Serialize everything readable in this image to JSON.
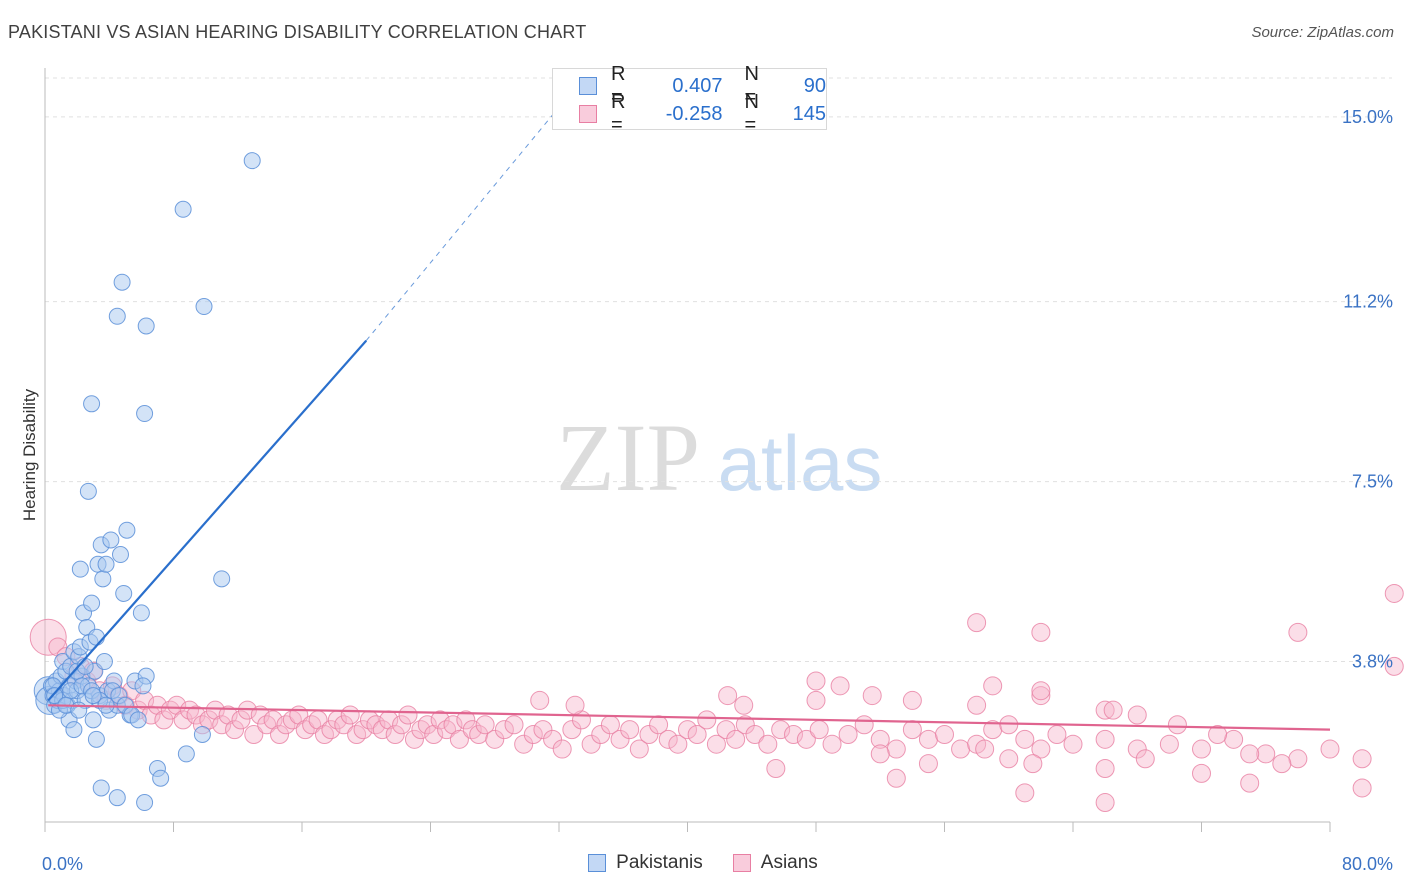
{
  "title": "PAKISTANI VS ASIAN HEARING DISABILITY CORRELATION CHART",
  "source": "Source: ZipAtlas.com",
  "watermark": {
    "zip": "ZIP",
    "atlas": "atlas"
  },
  "legend": {
    "series1": {
      "r_label": "R =",
      "r_value": "0.407",
      "n_label": "N =",
      "n_value": "90"
    },
    "series2": {
      "r_label": "R =",
      "r_value": "-0.258",
      "n_label": "N =",
      "n_value": "145"
    }
  },
  "colors": {
    "pakistani_fill": "#a8c8f0",
    "pakistani_stroke": "#5a8fd8",
    "pakistani_line": "#2a6fcc",
    "asian_fill": "#f6b6cc",
    "asian_stroke": "#e87fa3",
    "asian_line": "#e0648f",
    "axis_text": "#3a72c4",
    "grid": "#e0e0e0"
  },
  "chart_data": {
    "type": "scatter",
    "title": "PAKISTANI VS ASIAN HEARING DISABILITY CORRELATION CHART",
    "xlabel": "",
    "ylabel": "Hearing Disability",
    "xlim": [
      0,
      80
    ],
    "ylim": [
      0.5,
      15.8
    ],
    "x_tick_labels": [
      "0.0%",
      "80.0%"
    ],
    "y_ticks": [
      3.8,
      7.5,
      11.2,
      15.0
    ],
    "y_tick_labels": [
      "3.8%",
      "7.5%",
      "11.2%",
      "15.0%"
    ],
    "grid": "horizontal dashed",
    "legend_position": "top-center",
    "series": [
      {
        "name": "Pakistanis",
        "trend": {
          "x0": 0.2,
          "y0": 3.0,
          "x1": 20.0,
          "y1": 10.4,
          "dashed_to_x": 32.0,
          "dashed_to_y": 15.2
        },
        "points": [
          [
            0.2,
            3.2
          ],
          [
            0.3,
            3.0
          ],
          [
            0.4,
            3.3
          ],
          [
            0.5,
            3.1
          ],
          [
            0.6,
            2.9
          ],
          [
            0.7,
            3.4
          ],
          [
            0.8,
            3.0
          ],
          [
            0.9,
            3.2
          ],
          [
            1.0,
            3.5
          ],
          [
            1.1,
            3.8
          ],
          [
            1.2,
            3.1
          ],
          [
            1.3,
            3.6
          ],
          [
            1.4,
            2.9
          ],
          [
            1.5,
            3.3
          ],
          [
            1.6,
            3.7
          ],
          [
            1.7,
            3.0
          ],
          [
            1.8,
            4.0
          ],
          [
            1.9,
            3.4
          ],
          [
            2.0,
            3.2
          ],
          [
            2.1,
            3.9
          ],
          [
            2.2,
            4.1
          ],
          [
            2.3,
            3.5
          ],
          [
            2.4,
            4.8
          ],
          [
            2.5,
            3.0
          ],
          [
            2.6,
            4.5
          ],
          [
            2.7,
            3.3
          ],
          [
            2.8,
            4.2
          ],
          [
            2.9,
            5.0
          ],
          [
            3.0,
            2.6
          ],
          [
            3.1,
            3.6
          ],
          [
            3.2,
            4.3
          ],
          [
            3.3,
            5.8
          ],
          [
            3.4,
            3.1
          ],
          [
            3.5,
            6.2
          ],
          [
            3.6,
            5.5
          ],
          [
            3.7,
            3.8
          ],
          [
            3.8,
            5.8
          ],
          [
            3.9,
            3.2
          ],
          [
            4.0,
            2.8
          ],
          [
            4.1,
            6.3
          ],
          [
            4.3,
            3.4
          ],
          [
            4.5,
            2.9
          ],
          [
            4.7,
            6.0
          ],
          [
            4.9,
            5.2
          ],
          [
            5.1,
            6.5
          ],
          [
            5.3,
            2.7
          ],
          [
            5.6,
            3.4
          ],
          [
            6.0,
            4.8
          ],
          [
            6.3,
            3.5
          ],
          [
            7.0,
            1.6
          ],
          [
            1.5,
            2.6
          ],
          [
            1.8,
            2.4
          ],
          [
            2.2,
            5.7
          ],
          [
            2.7,
            7.3
          ],
          [
            3.2,
            2.2
          ],
          [
            3.5,
            1.2
          ],
          [
            4.5,
            1.0
          ],
          [
            6.2,
            0.9
          ],
          [
            7.2,
            1.4
          ],
          [
            8.8,
            1.9
          ],
          [
            9.8,
            2.3
          ],
          [
            11.0,
            5.5
          ],
          [
            2.9,
            9.1
          ],
          [
            4.5,
            10.9
          ],
          [
            4.8,
            11.6
          ],
          [
            6.3,
            10.7
          ],
          [
            6.2,
            8.9
          ],
          [
            8.6,
            13.1
          ],
          [
            9.9,
            11.1
          ],
          [
            12.9,
            14.1
          ],
          [
            0.5,
            3.3
          ],
          [
            0.9,
            2.8
          ],
          [
            1.1,
            3.0
          ],
          [
            1.6,
            3.2
          ],
          [
            2.0,
            3.6
          ],
          [
            2.3,
            3.3
          ],
          [
            2.5,
            3.7
          ],
          [
            2.9,
            3.2
          ],
          [
            3.4,
            3.0
          ],
          [
            3.8,
            2.9
          ],
          [
            4.2,
            3.2
          ],
          [
            4.6,
            3.1
          ],
          [
            5.0,
            2.9
          ],
          [
            5.4,
            2.7
          ],
          [
            5.8,
            2.6
          ],
          [
            6.1,
            3.3
          ],
          [
            0.6,
            3.1
          ],
          [
            1.3,
            2.9
          ],
          [
            2.1,
            2.8
          ],
          [
            3.0,
            3.1
          ]
        ]
      },
      {
        "name": "Asians",
        "trend": {
          "x0": 0.2,
          "y0": 2.9,
          "x1": 80.0,
          "y1": 2.4
        },
        "points": [
          [
            0.2,
            4.3
          ],
          [
            0.8,
            4.1
          ],
          [
            1.3,
            3.9
          ],
          [
            1.8,
            3.5
          ],
          [
            2.2,
            3.7
          ],
          [
            2.6,
            3.4
          ],
          [
            3.0,
            3.6
          ],
          [
            3.4,
            3.2
          ],
          [
            3.8,
            3.0
          ],
          [
            4.2,
            3.3
          ],
          [
            4.6,
            3.1
          ],
          [
            5.0,
            2.9
          ],
          [
            5.4,
            3.2
          ],
          [
            5.8,
            2.8
          ],
          [
            6.2,
            3.0
          ],
          [
            6.6,
            2.7
          ],
          [
            7.0,
            2.9
          ],
          [
            7.4,
            2.6
          ],
          [
            7.8,
            2.8
          ],
          [
            8.2,
            2.9
          ],
          [
            8.6,
            2.6
          ],
          [
            9.0,
            2.8
          ],
          [
            9.4,
            2.7
          ],
          [
            9.8,
            2.5
          ],
          [
            10.2,
            2.6
          ],
          [
            10.6,
            2.8
          ],
          [
            11.0,
            2.5
          ],
          [
            11.4,
            2.7
          ],
          [
            11.8,
            2.4
          ],
          [
            12.2,
            2.6
          ],
          [
            12.6,
            2.8
          ],
          [
            13.0,
            2.3
          ],
          [
            13.4,
            2.7
          ],
          [
            13.8,
            2.5
          ],
          [
            14.2,
            2.6
          ],
          [
            14.6,
            2.3
          ],
          [
            15.0,
            2.5
          ],
          [
            15.4,
            2.6
          ],
          [
            15.8,
            2.7
          ],
          [
            16.2,
            2.4
          ],
          [
            16.6,
            2.5
          ],
          [
            17.0,
            2.6
          ],
          [
            17.4,
            2.3
          ],
          [
            17.8,
            2.4
          ],
          [
            18.2,
            2.6
          ],
          [
            18.6,
            2.5
          ],
          [
            19.0,
            2.7
          ],
          [
            19.4,
            2.3
          ],
          [
            19.8,
            2.4
          ],
          [
            20.2,
            2.6
          ],
          [
            20.6,
            2.5
          ],
          [
            21.0,
            2.4
          ],
          [
            21.4,
            2.6
          ],
          [
            21.8,
            2.3
          ],
          [
            22.2,
            2.5
          ],
          [
            22.6,
            2.7
          ],
          [
            23.0,
            2.2
          ],
          [
            23.4,
            2.4
          ],
          [
            23.8,
            2.5
          ],
          [
            24.2,
            2.3
          ],
          [
            24.6,
            2.6
          ],
          [
            25.0,
            2.4
          ],
          [
            25.4,
            2.5
          ],
          [
            25.8,
            2.2
          ],
          [
            26.2,
            2.6
          ],
          [
            26.6,
            2.4
          ],
          [
            27.0,
            2.3
          ],
          [
            27.4,
            2.5
          ],
          [
            28.0,
            2.2
          ],
          [
            28.6,
            2.4
          ],
          [
            29.2,
            2.5
          ],
          [
            29.8,
            2.1
          ],
          [
            30.4,
            2.3
          ],
          [
            31.0,
            2.4
          ],
          [
            31.6,
            2.2
          ],
          [
            32.2,
            2.0
          ],
          [
            32.8,
            2.4
          ],
          [
            33.4,
            2.6
          ],
          [
            34.0,
            2.1
          ],
          [
            34.6,
            2.3
          ],
          [
            35.2,
            2.5
          ],
          [
            35.8,
            2.2
          ],
          [
            36.4,
            2.4
          ],
          [
            37.0,
            2.0
          ],
          [
            37.6,
            2.3
          ],
          [
            38.2,
            2.5
          ],
          [
            38.8,
            2.2
          ],
          [
            39.4,
            2.1
          ],
          [
            40.0,
            2.4
          ],
          [
            40.6,
            2.3
          ],
          [
            41.2,
            2.6
          ],
          [
            41.8,
            2.1
          ],
          [
            42.4,
            2.4
          ],
          [
            43.0,
            2.2
          ],
          [
            43.6,
            2.5
          ],
          [
            44.2,
            2.3
          ],
          [
            45.0,
            2.1
          ],
          [
            45.8,
            2.4
          ],
          [
            46.6,
            2.3
          ],
          [
            47.4,
            2.2
          ],
          [
            48.2,
            2.4
          ],
          [
            49.0,
            2.1
          ],
          [
            50.0,
            2.3
          ],
          [
            51.0,
            2.5
          ],
          [
            52.0,
            2.2
          ],
          [
            53.0,
            2.0
          ],
          [
            54.0,
            2.4
          ],
          [
            55.0,
            2.2
          ],
          [
            56.0,
            2.3
          ],
          [
            57.0,
            2.0
          ],
          [
            58.0,
            2.1
          ],
          [
            59.0,
            2.4
          ],
          [
            60.0,
            2.5
          ],
          [
            61.0,
            2.2
          ],
          [
            62.0,
            2.0
          ],
          [
            63.0,
            2.3
          ],
          [
            64.0,
            2.1
          ],
          [
            66.0,
            2.2
          ],
          [
            68.0,
            2.0
          ],
          [
            70.0,
            2.1
          ],
          [
            72.0,
            2.0
          ],
          [
            74.0,
            2.2
          ],
          [
            76.0,
            1.9
          ],
          [
            78.0,
            1.8
          ],
          [
            80.0,
            2.0
          ],
          [
            30.8,
            3.0
          ],
          [
            33.0,
            2.9
          ],
          [
            42.5,
            3.1
          ],
          [
            43.5,
            2.9
          ],
          [
            48.0,
            3.0
          ],
          [
            51.5,
            3.1
          ],
          [
            54.0,
            3.0
          ],
          [
            58.0,
            2.9
          ],
          [
            62.0,
            3.1
          ],
          [
            66.0,
            2.8
          ],
          [
            52.0,
            1.9
          ],
          [
            55.0,
            1.7
          ],
          [
            58.5,
            2.0
          ],
          [
            60.0,
            1.8
          ],
          [
            61.5,
            1.7
          ],
          [
            66.0,
            1.6
          ],
          [
            68.5,
            1.8
          ],
          [
            72.0,
            1.5
          ],
          [
            45.5,
            1.6
          ],
          [
            53.0,
            1.4
          ],
          [
            48.0,
            3.4
          ],
          [
            49.5,
            3.3
          ],
          [
            59.0,
            3.3
          ],
          [
            62.0,
            3.2
          ],
          [
            66.5,
            2.8
          ],
          [
            68.0,
            2.7
          ],
          [
            70.5,
            2.5
          ],
          [
            73.0,
            2.3
          ],
          [
            75.0,
            1.9
          ],
          [
            77.0,
            1.7
          ],
          [
            82.0,
            1.8
          ],
          [
            84.0,
            5.2
          ],
          [
            58.0,
            4.6
          ],
          [
            62.0,
            4.4
          ],
          [
            78.0,
            4.4
          ],
          [
            84.0,
            3.7
          ],
          [
            61.0,
            1.1
          ],
          [
            66.0,
            0.9
          ],
          [
            75.0,
            1.3
          ],
          [
            82.0,
            1.2
          ]
        ]
      }
    ]
  },
  "bottom_legend": {
    "pakistanis": "Pakistanis",
    "asians": "Asians"
  },
  "axis": {
    "x_min_label": "0.0%",
    "x_max_label": "80.0%"
  }
}
